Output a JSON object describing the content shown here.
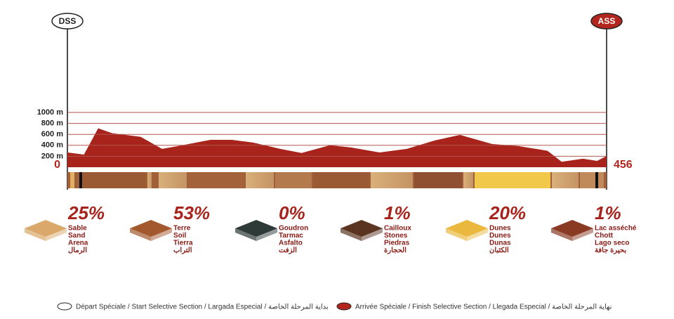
{
  "start_label": "DSS",
  "finish_label": "ASS",
  "chart_data": {
    "type": "area",
    "color": "#a8231b",
    "grid_color": "#b0564e",
    "grid": true,
    "x": [
      0,
      14,
      26,
      38,
      62,
      80,
      97,
      121,
      139,
      157,
      180,
      198,
      222,
      240,
      264,
      287,
      311,
      332,
      359,
      382,
      406,
      418,
      436,
      448,
      456
    ],
    "values": [
      270,
      230,
      710,
      620,
      555,
      335,
      400,
      500,
      500,
      450,
      335,
      260,
      400,
      360,
      270,
      335,
      490,
      590,
      425,
      385,
      300,
      100,
      155,
      115,
      205
    ],
    "xlim": [
      0,
      456
    ],
    "xticks": [
      0,
      456
    ],
    "ylim": [
      0,
      1000
    ],
    "yticks": [
      {
        "value": 200,
        "label": "200 m"
      },
      {
        "value": 400,
        "label": "400 m"
      },
      {
        "value": 600,
        "label": "600 m"
      },
      {
        "value": 800,
        "label": "800 m"
      },
      {
        "value": 1000,
        "label": "1000 m"
      }
    ]
  },
  "terrain": [
    {
      "percent": "25%",
      "labels": [
        "Sable",
        "Sand",
        "Arena",
        "الرمال"
      ],
      "color": "#d9a86a"
    },
    {
      "percent": "53%",
      "labels": [
        "Terre",
        "Soil",
        "Tierra",
        "التراب"
      ],
      "color": "#a3582e"
    },
    {
      "percent": "0%",
      "labels": [
        "Goudron",
        "Tarmac",
        "Asfalto",
        "الزفت"
      ],
      "color": "#2e3a38"
    },
    {
      "percent": "1%",
      "labels": [
        "Cailloux",
        "Stones",
        "Piedras",
        "الحجارة"
      ],
      "color": "#5a3420"
    },
    {
      "percent": "20%",
      "labels": [
        "Dunes",
        "Dunes",
        "Dunas",
        "الكثبان"
      ],
      "color": "#eab83e"
    },
    {
      "percent": "1%",
      "labels": [
        "Lac asséché",
        "Chott",
        "Lago seco",
        "بحيرة جافة"
      ],
      "color": "#8a3a22"
    }
  ],
  "legend": [
    "Départ Spéciale / Start Selective Section / Largada Especial / بداية المرحلة الخاصة",
    "Arrivée Spéciale / Finish Selective Section / Llegada Especial / نهاية المرحلة الخاصة"
  ]
}
